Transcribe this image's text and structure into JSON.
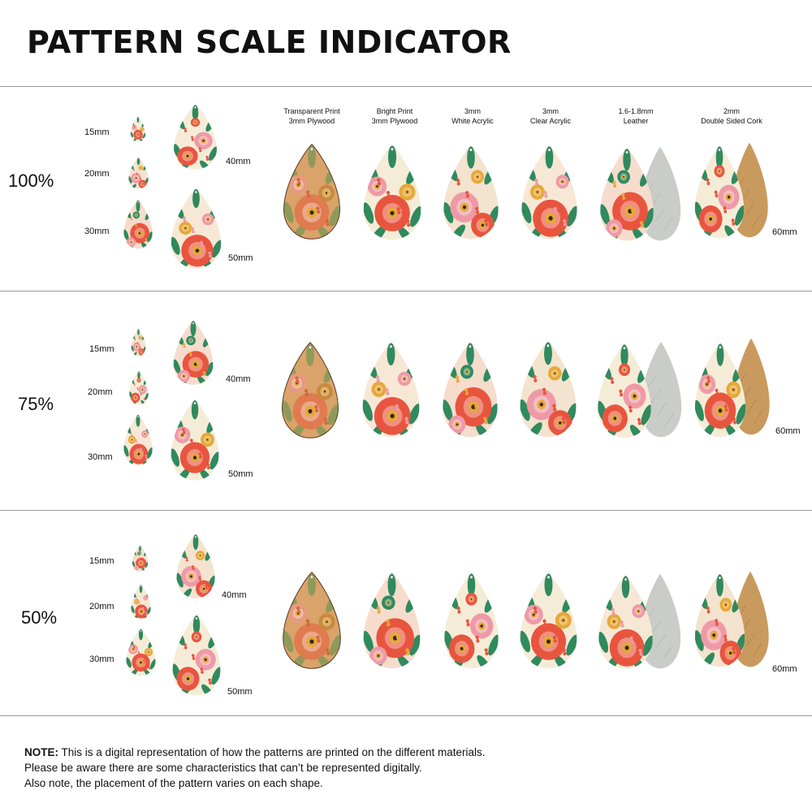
{
  "title": "PATTERN SCALE INDICATOR",
  "materials": [
    {
      "line1": "Transparent Print",
      "line2": "3mm Plywood"
    },
    {
      "line1": "Bright Print",
      "line2": "3mm Plywood"
    },
    {
      "line1": "3mm",
      "line2": "White Acrylic"
    },
    {
      "line1": "3mm",
      "line2": "Clear Acrylic"
    },
    {
      "line1": "1.6-1.8mm",
      "line2": "Leather"
    },
    {
      "line1": "2mm",
      "line2": "Double Sided Cork"
    }
  ],
  "rows": [
    {
      "scale": "100%",
      "sizes": {
        "s15": "15mm",
        "s20": "20mm",
        "s30": "30mm",
        "s40": "40mm",
        "s50": "50mm",
        "s60": "60mm"
      }
    },
    {
      "scale": "75%",
      "sizes": {
        "s15": "15mm",
        "s20": "20mm",
        "s30": "30mm",
        "s40": "40mm",
        "s50": "50mm",
        "s60": "60mm"
      }
    },
    {
      "scale": "50%",
      "sizes": {
        "s15": "15mm",
        "s20": "20mm",
        "s30": "30mm",
        "s40": "40mm",
        "s50": "50mm",
        "s60": "60mm"
      }
    }
  ],
  "note": {
    "bold": "NOTE:",
    "line1": " This is a digital representation of how the patterns are printed on the different materials.",
    "line2": "Please be aware there are some characteristics that can’t be represented digitally.",
    "line3": "Also note, the placement of the pattern varies on each shape."
  },
  "colors": {
    "coral": "#e8553f",
    "pink": "#ee9aa6",
    "green": "#2f8a5e",
    "cream": "#f5ecd8",
    "mustard": "#e6a93a",
    "plywood": "#d9a36a",
    "leather_back": "#c9ccc7",
    "cork": "#c99a5e"
  }
}
